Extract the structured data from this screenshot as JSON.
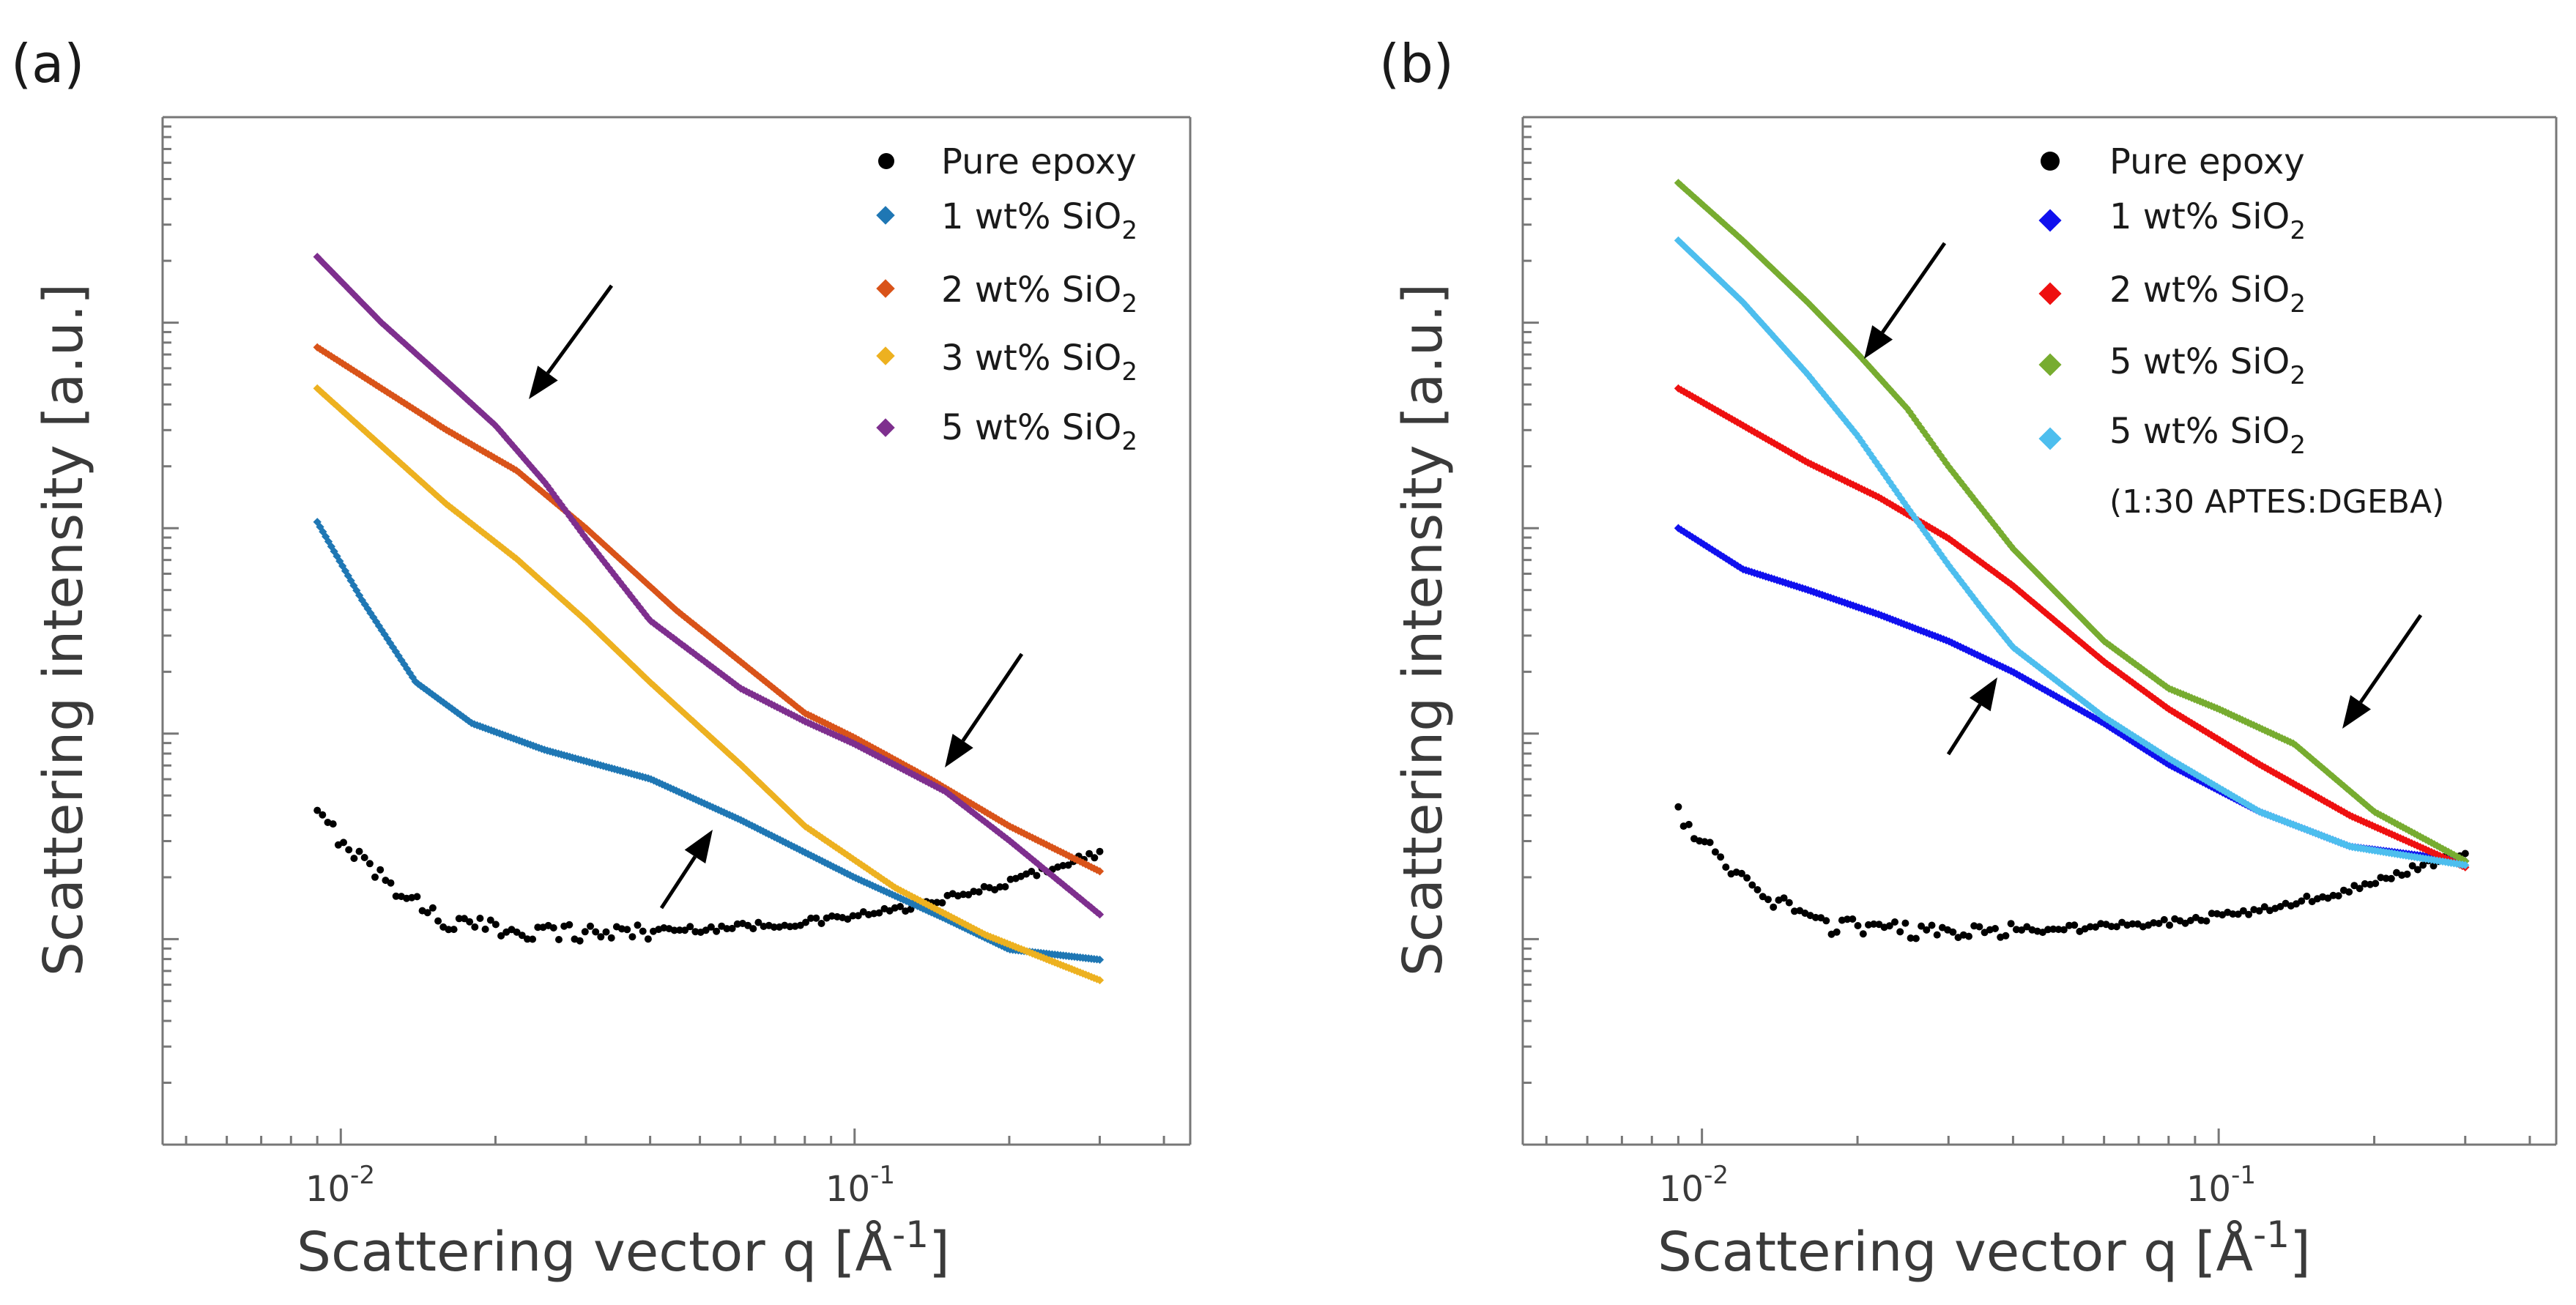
{
  "colors": {
    "pure_epoxy": "#000000",
    "a_1wt": "#1f77b4",
    "a_2wt": "#d95319",
    "a_3wt": "#edb120",
    "a_5wt": "#7e2f8e",
    "b_1wt": "#1010ee",
    "b_2wt": "#ee1010",
    "b_5wt": "#77ac30",
    "b_5wt_aptes": "#4dbeee"
  },
  "chart_data": [
    {
      "type": "scatter",
      "panel_label": "(a)",
      "xlabel": "Scattering vector q [Å",
      "xlabel_sup": "-1",
      "xlabel_end": "]",
      "ylabel": "Scattering intensity [a.u.]",
      "xscale": "log",
      "yscale": "log",
      "xlim": [
        0.0045,
        0.45
      ],
      "ylim_decades": [
        -1.0,
        4.0
      ],
      "x_ticks": [
        {
          "base": "10",
          "exp": "-2",
          "value": 0.01
        },
        {
          "base": "10",
          "exp": "-1",
          "value": 0.1
        }
      ],
      "legend": [
        "Pure epoxy",
        "1 wt% SiO",
        "2 wt% SiO",
        "3 wt% SiO",
        "5 wt% SiO"
      ],
      "legend_subscript": "2",
      "legend_position": "top-right",
      "series": [
        {
          "name": "Pure epoxy",
          "marker": "circle",
          "color_key": "pure_epoxy",
          "q": [
            0.009,
            0.012,
            0.016,
            0.02,
            0.03,
            0.05,
            0.08,
            0.12,
            0.18,
            0.25,
            0.3
          ],
          "log_intensity": [
            0.6,
            0.3,
            0.08,
            0.05,
            0.03,
            0.05,
            0.08,
            0.14,
            0.24,
            0.36,
            0.42
          ]
        },
        {
          "name": "1 wt% SiO2",
          "marker": "diamond",
          "color_key": "a_1wt",
          "q": [
            0.009,
            0.011,
            0.014,
            0.018,
            0.025,
            0.04,
            0.06,
            0.1,
            0.15,
            0.2,
            0.3
          ],
          "log_intensity": [
            2.03,
            1.65,
            1.25,
            1.05,
            0.92,
            0.78,
            0.58,
            0.3,
            0.1,
            -0.05,
            -0.1
          ]
        },
        {
          "name": "2 wt% SiO2",
          "marker": "diamond",
          "color_key": "a_2wt",
          "q": [
            0.009,
            0.012,
            0.016,
            0.022,
            0.03,
            0.045,
            0.06,
            0.08,
            0.1,
            0.14,
            0.2,
            0.3
          ],
          "log_intensity": [
            2.88,
            2.68,
            2.48,
            2.28,
            2.0,
            1.6,
            1.35,
            1.1,
            0.98,
            0.78,
            0.55,
            0.33
          ]
        },
        {
          "name": "3 wt% SiO2",
          "marker": "diamond",
          "color_key": "a_3wt",
          "q": [
            0.009,
            0.012,
            0.016,
            0.022,
            0.03,
            0.04,
            0.06,
            0.08,
            0.12,
            0.18,
            0.3
          ],
          "log_intensity": [
            2.68,
            2.4,
            2.12,
            1.85,
            1.55,
            1.25,
            0.85,
            0.55,
            0.25,
            0.02,
            -0.2
          ]
        },
        {
          "name": "5 wt% SiO2",
          "marker": "diamond",
          "color_key": "a_5wt",
          "q": [
            0.009,
            0.012,
            0.016,
            0.02,
            0.025,
            0.03,
            0.04,
            0.06,
            0.08,
            0.1,
            0.15,
            0.2,
            0.3
          ],
          "log_intensity": [
            3.32,
            3.0,
            2.72,
            2.5,
            2.22,
            1.95,
            1.55,
            1.22,
            1.06,
            0.95,
            0.72,
            0.48,
            0.12
          ]
        }
      ]
    },
    {
      "type": "scatter",
      "panel_label": "(b)",
      "xlabel": "Scattering vector q [Å",
      "xlabel_sup": "-1",
      "xlabel_end": "]",
      "ylabel": "Scattering intensity [a.u.]",
      "xscale": "log",
      "yscale": "log",
      "xlim": [
        0.0045,
        0.45
      ],
      "ylim_decades": [
        -1.0,
        4.0
      ],
      "x_ticks": [
        {
          "base": "10",
          "exp": "-2",
          "value": 0.01
        },
        {
          "base": "10",
          "exp": "-1",
          "value": 0.1
        }
      ],
      "legend": [
        "Pure epoxy",
        "1 wt% SiO",
        "2 wt% SiO",
        "5 wt% SiO",
        "5 wt% SiO"
      ],
      "legend_subscript": "2",
      "legend_note": "(1:30 APTES:DGEBA)",
      "legend_position": "top-right",
      "series": [
        {
          "name": "Pure epoxy",
          "marker": "circle",
          "color_key": "pure_epoxy",
          "q": [
            0.009,
            0.012,
            0.016,
            0.02,
            0.03,
            0.05,
            0.08,
            0.12,
            0.18,
            0.25,
            0.3
          ],
          "log_intensity": [
            0.6,
            0.3,
            0.08,
            0.05,
            0.03,
            0.05,
            0.08,
            0.14,
            0.24,
            0.36,
            0.42
          ]
        },
        {
          "name": "1 wt% SiO2",
          "marker": "diamond",
          "color_key": "b_1wt",
          "q": [
            0.009,
            0.012,
            0.016,
            0.022,
            0.03,
            0.04,
            0.06,
            0.08,
            0.12,
            0.18,
            0.3
          ],
          "log_intensity": [
            2.0,
            1.8,
            1.7,
            1.58,
            1.45,
            1.3,
            1.05,
            0.85,
            0.62,
            0.45,
            0.38
          ]
        },
        {
          "name": "2 wt% SiO2",
          "marker": "diamond",
          "color_key": "b_2wt",
          "q": [
            0.009,
            0.012,
            0.016,
            0.022,
            0.03,
            0.04,
            0.06,
            0.08,
            0.12,
            0.18,
            0.3
          ],
          "log_intensity": [
            2.68,
            2.5,
            2.32,
            2.15,
            1.95,
            1.72,
            1.35,
            1.12,
            0.85,
            0.6,
            0.35
          ]
        },
        {
          "name": "5 wt% SiO2",
          "marker": "diamond",
          "color_key": "b_5wt",
          "q": [
            0.009,
            0.012,
            0.016,
            0.02,
            0.025,
            0.03,
            0.04,
            0.06,
            0.08,
            0.1,
            0.14,
            0.2,
            0.3
          ],
          "log_intensity": [
            3.68,
            3.4,
            3.1,
            2.85,
            2.58,
            2.3,
            1.9,
            1.45,
            1.22,
            1.12,
            0.95,
            0.62,
            0.38
          ]
        },
        {
          "name": "5 wt% SiO2 (1:30 APTES:DGEBA)",
          "marker": "diamond",
          "color_key": "b_5wt_aptes",
          "q": [
            0.009,
            0.012,
            0.016,
            0.02,
            0.025,
            0.03,
            0.035,
            0.04,
            0.06,
            0.08,
            0.12,
            0.18,
            0.3
          ],
          "log_intensity": [
            3.4,
            3.1,
            2.75,
            2.45,
            2.1,
            1.82,
            1.6,
            1.42,
            1.08,
            0.88,
            0.62,
            0.45,
            0.36
          ]
        }
      ]
    }
  ]
}
